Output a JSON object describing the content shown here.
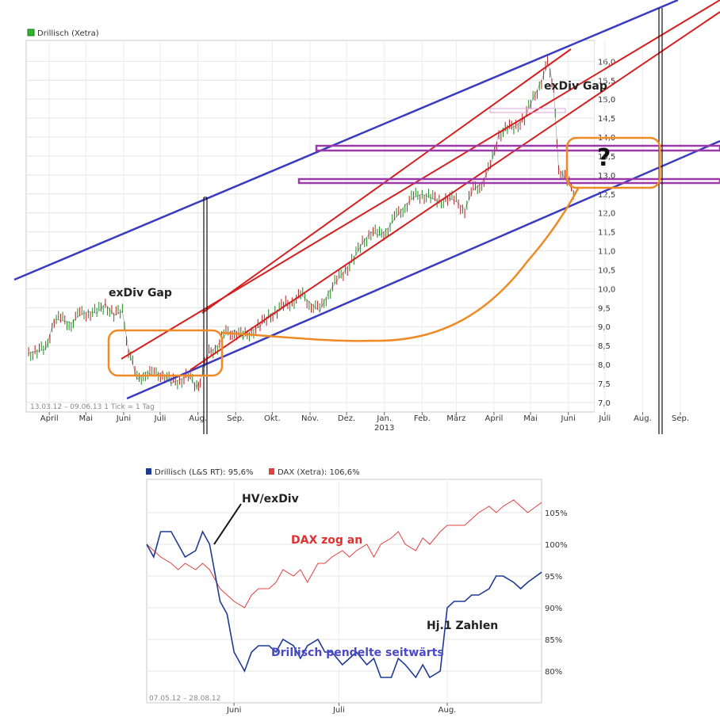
{
  "chart_data": [
    {
      "type": "line",
      "legend": [
        {
          "label": "Drillisch (Xetra)",
          "color": "#2db52d"
        }
      ],
      "date_range_label": "13.03.12 – 09.06.13",
      "tick_info": "1 Tick = 1 Tag",
      "x_ticks": [
        "April",
        "Mai",
        "Juni",
        "Juli",
        "Aug.",
        "Sep.",
        "Okt.",
        "Nov.",
        "Dez.",
        "Jan.",
        "Feb.",
        "März",
        "April",
        "Mai",
        "Juni",
        "Juli",
        "Aug.",
        "Sep."
      ],
      "x_year_label": "2013",
      "y_ticks": [
        "7,0",
        "7,5",
        "8,0",
        "8,5",
        "9,0",
        "9,5",
        "10,0",
        "10,5",
        "11,0",
        "11,5",
        "12,0",
        "12,5",
        "13,0",
        "13,5",
        "14,0",
        "14,5",
        "15,0",
        "15,5",
        "16,0"
      ],
      "ylim": [
        6.6,
        16.3
      ],
      "series": [
        {
          "name": "",
          "dates": [
            "2012-03-15",
            "2012-03-22",
            "2012-03-29",
            "2012-04-05",
            "2012-04-12",
            "2012-04-19",
            "2012-04-26",
            "2012-05-03",
            "2012-05-10",
            "2012-05-17",
            "2012-05-24",
            "2012-05-31",
            "2012-06-05",
            "2012-06-12",
            "2012-06-19",
            "2012-06-26",
            "2012-07-03",
            "2012-07-10",
            "2012-07-17",
            "2012-07-24",
            "2012-07-31",
            "2012-08-03",
            "2012-08-10",
            "2012-08-17",
            "2012-08-24",
            "2012-08-31",
            "2012-09-07",
            "2012-09-14",
            "2012-09-21",
            "2012-09-28",
            "2012-10-05",
            "2012-10-12",
            "2012-10-19",
            "2012-10-26",
            "2012-11-02",
            "2012-11-09",
            "2012-11-16",
            "2012-11-23",
            "2012-11-30",
            "2012-12-07",
            "2012-12-14",
            "2012-12-21",
            "2012-12-28",
            "2013-01-04",
            "2013-01-11",
            "2013-01-18",
            "2013-01-25",
            "2013-02-01",
            "2013-02-08",
            "2013-02-15",
            "2013-02-22",
            "2013-03-01",
            "2013-03-08",
            "2013-03-15",
            "2013-03-22",
            "2013-03-29",
            "2013-04-05",
            "2013-04-12",
            "2013-04-19",
            "2013-04-26",
            "2013-05-03",
            "2013-05-10",
            "2013-05-15",
            "2013-05-17",
            "2013-05-20",
            "2013-05-24",
            "2013-05-31",
            "2013-06-07"
          ],
          "values": [
            8.3,
            8.35,
            8.4,
            9.2,
            9.15,
            9.1,
            9.3,
            9.4,
            9.35,
            9.6,
            9.3,
            9.4,
            8.4,
            7.6,
            7.8,
            7.7,
            7.8,
            7.5,
            7.6,
            7.7,
            7.4,
            7.6,
            8.3,
            8.5,
            8.8,
            8.9,
            8.7,
            8.9,
            9.0,
            9.3,
            9.4,
            9.6,
            9.7,
            9.8,
            9.6,
            9.4,
            9.9,
            10.2,
            10.5,
            10.8,
            11.2,
            11.5,
            11.4,
            11.6,
            11.9,
            12.2,
            12.4,
            12.5,
            12.4,
            12.3,
            12.4,
            12.3,
            12.1,
            12.6,
            12.8,
            13.2,
            14.1,
            14.2,
            14.3,
            14.5,
            15.0,
            15.5,
            15.9,
            15.8,
            15.2,
            13.2,
            12.8,
            12.5
          ]
        }
      ],
      "annotations": [
        "exDiv Gap",
        "exDiv Gap",
        "?"
      ]
    },
    {
      "type": "line",
      "date_range_label": "07.05.12 – 28.08.12",
      "x_ticks": [
        "Juni",
        "Juli",
        "Aug."
      ],
      "y_ticks": [
        "80%",
        "85%",
        "90%",
        "95%",
        "100%",
        "105%"
      ],
      "ylim": [
        77.5,
        110.5
      ],
      "series": [
        {
          "name": "Drillisch (L&S RT): 95,6%",
          "color": "#1f3a93",
          "dates": [
            "2012-05-07",
            "2012-05-09",
            "2012-05-11",
            "2012-05-14",
            "2012-05-16",
            "2012-05-18",
            "2012-05-21",
            "2012-05-23",
            "2012-05-25",
            "2012-05-28",
            "2012-05-30",
            "2012-06-01",
            "2012-06-04",
            "2012-06-06",
            "2012-06-08",
            "2012-06-11",
            "2012-06-13",
            "2012-06-15",
            "2012-06-18",
            "2012-06-20",
            "2012-06-22",
            "2012-06-25",
            "2012-06-27",
            "2012-06-29",
            "2012-07-02",
            "2012-07-04",
            "2012-07-06",
            "2012-07-09",
            "2012-07-11",
            "2012-07-13",
            "2012-07-16",
            "2012-07-18",
            "2012-07-20",
            "2012-07-23",
            "2012-07-25",
            "2012-07-27",
            "2012-07-30",
            "2012-08-01",
            "2012-08-03",
            "2012-08-06",
            "2012-08-08",
            "2012-08-10",
            "2012-08-13",
            "2012-08-15",
            "2012-08-17",
            "2012-08-20",
            "2012-08-22",
            "2012-08-24",
            "2012-08-28"
          ],
          "values": [
            100,
            98,
            102,
            102,
            100,
            98,
            99,
            102,
            100,
            91,
            89,
            83,
            80,
            83,
            84,
            84,
            83,
            85,
            84,
            82,
            84,
            85,
            83,
            83,
            81,
            82,
            83,
            81,
            82,
            79,
            79,
            82,
            81,
            79,
            81,
            79,
            80,
            90,
            91,
            91,
            92,
            92,
            93,
            95,
            95,
            94,
            93,
            94,
            95.6
          ]
        },
        {
          "name": "DAX (Xetra): 106,6%",
          "color": "#e04040",
          "dates": [
            "2012-05-07",
            "2012-05-09",
            "2012-05-11",
            "2012-05-14",
            "2012-05-16",
            "2012-05-18",
            "2012-05-21",
            "2012-05-23",
            "2012-05-25",
            "2012-05-28",
            "2012-05-30",
            "2012-06-01",
            "2012-06-04",
            "2012-06-06",
            "2012-06-08",
            "2012-06-11",
            "2012-06-13",
            "2012-06-15",
            "2012-06-18",
            "2012-06-20",
            "2012-06-22",
            "2012-06-25",
            "2012-06-27",
            "2012-06-29",
            "2012-07-02",
            "2012-07-04",
            "2012-07-06",
            "2012-07-09",
            "2012-07-11",
            "2012-07-13",
            "2012-07-16",
            "2012-07-18",
            "2012-07-20",
            "2012-07-23",
            "2012-07-25",
            "2012-07-27",
            "2012-07-30",
            "2012-08-01",
            "2012-08-03",
            "2012-08-06",
            "2012-08-08",
            "2012-08-10",
            "2012-08-13",
            "2012-08-15",
            "2012-08-17",
            "2012-08-20",
            "2012-08-22",
            "2012-08-24",
            "2012-08-28"
          ],
          "values": [
            100,
            99,
            98,
            97,
            96,
            97,
            96,
            97,
            96,
            93,
            92,
            91,
            90,
            92,
            93,
            93,
            94,
            96,
            95,
            96,
            94,
            97,
            97,
            98,
            99,
            98,
            99,
            100,
            98,
            100,
            101,
            102,
            100,
            99,
            101,
            100,
            102,
            103,
            103,
            103,
            104,
            105,
            106,
            105,
            106,
            107,
            106,
            105,
            106.6
          ]
        }
      ],
      "annotations": [
        "HV/exDiv",
        "DAX zog an",
        "Hj.1 Zahlen",
        "Drillisch pendelte seitwärts"
      ]
    }
  ]
}
